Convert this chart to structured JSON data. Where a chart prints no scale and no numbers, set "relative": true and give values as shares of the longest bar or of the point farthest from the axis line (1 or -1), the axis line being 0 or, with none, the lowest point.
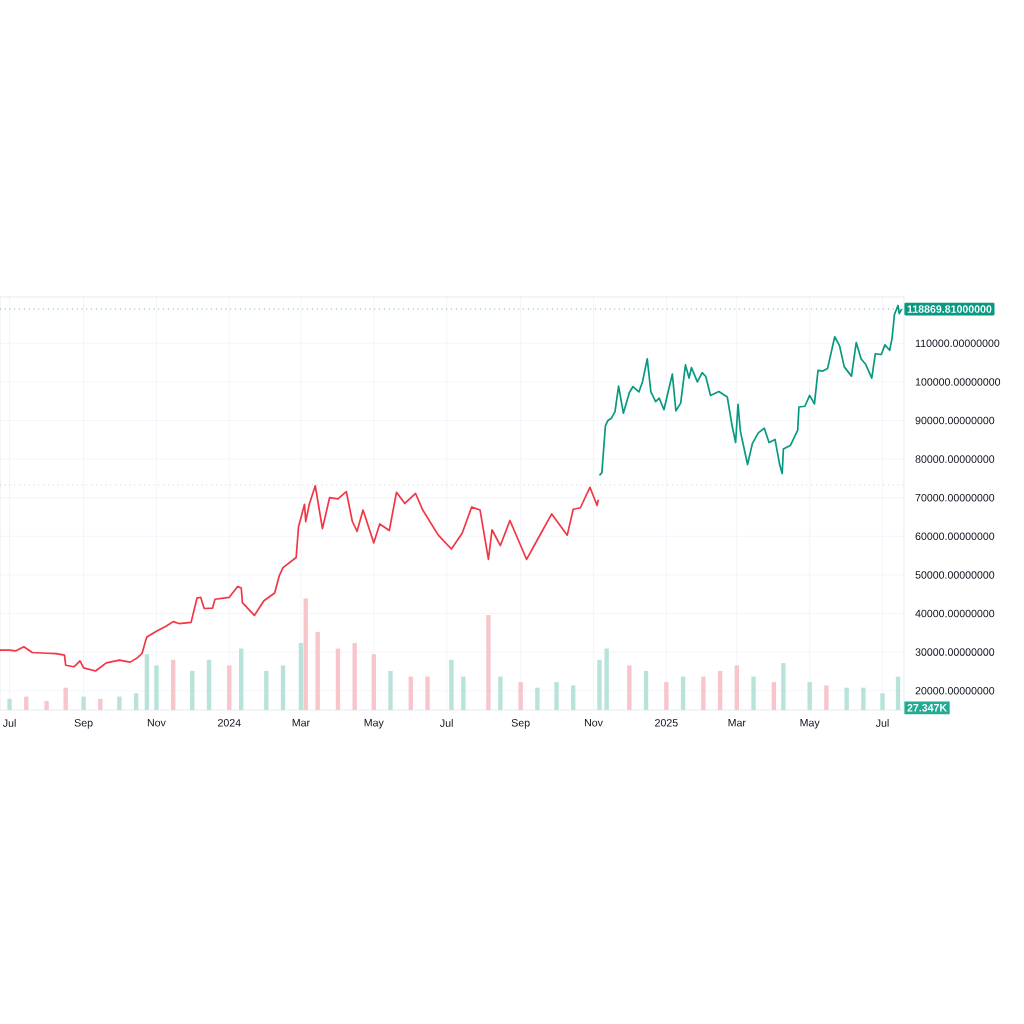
{
  "chart_data": [
    {
      "type": "line",
      "xlim": [
        "2023-06-23",
        "2025-07-19"
      ],
      "ylim": [
        15000,
        122000
      ],
      "grid": true,
      "xticks": [
        {
          "value": "2023-07-01",
          "label": "Jul"
        },
        {
          "value": "2023-09-01",
          "label": "Sep"
        },
        {
          "value": "2023-11-01",
          "label": "Nov"
        },
        {
          "value": "2024-01-01",
          "label": "2024"
        },
        {
          "value": "2024-03-01",
          "label": "Mar"
        },
        {
          "value": "2024-05-01",
          "label": "May"
        },
        {
          "value": "2024-07-01",
          "label": "Jul"
        },
        {
          "value": "2024-09-01",
          "label": "Sep"
        },
        {
          "value": "2024-11-01",
          "label": "Nov"
        },
        {
          "value": "2025-01-01",
          "label": "2025"
        },
        {
          "value": "2025-03-01",
          "label": "Mar"
        },
        {
          "value": "2025-05-01",
          "label": "May"
        },
        {
          "value": "2025-07-01",
          "label": "Jul"
        }
      ],
      "yticks": [
        {
          "value": 20000,
          "label": "20000.00000000"
        },
        {
          "value": 30000,
          "label": "30000.00000000"
        },
        {
          "value": 40000,
          "label": "40000.00000000"
        },
        {
          "value": 50000,
          "label": "50000.00000000"
        },
        {
          "value": 60000,
          "label": "60000.00000000"
        },
        {
          "value": 70000,
          "label": "70000.00000000"
        },
        {
          "value": 80000,
          "label": "80000.00000000"
        },
        {
          "value": 90000,
          "label": "90000.00000000"
        },
        {
          "value": 100000,
          "label": "100000.00000000"
        },
        {
          "value": 110000,
          "label": "110000.00000000"
        }
      ],
      "ref_lines": [
        {
          "axis": "y",
          "value": 73300,
          "color": "#b2b5be",
          "line_style": "dotted"
        },
        {
          "axis": "y",
          "value": 118869.81,
          "label": "118869.81000000",
          "color": "#089981",
          "line_style": "dotted"
        }
      ],
      "series": [
        {
          "color": "#f23645",
          "x": [
            "2023-06-23",
            "2023-07-01",
            "2023-07-06",
            "2023-07-13",
            "2023-07-20",
            "2023-08-01",
            "2023-08-09",
            "2023-08-16",
            "2023-08-17",
            "2023-08-24",
            "2023-08-29",
            "2023-09-01",
            "2023-09-11",
            "2023-09-20",
            "2023-10-01",
            "2023-10-10",
            "2023-10-16",
            "2023-10-20",
            "2023-10-23",
            "2023-10-24",
            "2023-11-01",
            "2023-11-09",
            "2023-11-15",
            "2023-11-20",
            "2023-11-30",
            "2023-12-05",
            "2023-12-08",
            "2023-12-11",
            "2023-12-18",
            "2023-12-20",
            "2024-01-01",
            "2024-01-08",
            "2024-01-11",
            "2024-01-12",
            "2024-01-22",
            "2024-01-30",
            "2024-02-08",
            "2024-02-12",
            "2024-02-15",
            "2024-02-26",
            "2024-02-28",
            "2024-03-04",
            "2024-03-05",
            "2024-03-08",
            "2024-03-13",
            "2024-03-19",
            "2024-03-25",
            "2024-04-01",
            "2024-04-08",
            "2024-04-13",
            "2024-04-17",
            "2024-04-22",
            "2024-05-01",
            "2024-05-06",
            "2024-05-14",
            "2024-05-20",
            "2024-05-27",
            "2024-06-05",
            "2024-06-11",
            "2024-06-24",
            "2024-07-05",
            "2024-07-14",
            "2024-07-22",
            "2024-07-29",
            "2024-08-05",
            "2024-08-08",
            "2024-08-15",
            "2024-08-23",
            "2024-09-06",
            "2024-09-15",
            "2024-09-27",
            "2024-10-10",
            "2024-10-15",
            "2024-10-21",
            "2024-10-29",
            "2024-11-04",
            "2024-11-05"
          ],
          "values": [
            30500,
            30500,
            30300,
            31400,
            29900,
            29700,
            29600,
            29200,
            26600,
            26200,
            27700,
            25900,
            25100,
            27200,
            27900,
            27400,
            28500,
            29700,
            33000,
            33900,
            35400,
            36700,
            37900,
            37400,
            37700,
            44000,
            44200,
            41300,
            41400,
            43700,
            44200,
            47000,
            46600,
            42800,
            39500,
            43300,
            45300,
            49900,
            51900,
            54500,
            62500,
            68300,
            63800,
            68300,
            73100,
            62000,
            70000,
            69700,
            71600,
            63900,
            61300,
            66800,
            58300,
            63200,
            61500,
            71400,
            68500,
            71100,
            66800,
            60300,
            56700,
            60800,
            67600,
            66800,
            54000,
            61700,
            57600,
            64100,
            54000,
            59100,
            65800,
            60300,
            67000,
            67400,
            72700,
            68000,
            69500
          ]
        },
        {
          "color": "#089981",
          "x": [
            "2024-11-06",
            "2024-11-08",
            "2024-11-11",
            "2024-11-13",
            "2024-11-16",
            "2024-11-19",
            "2024-11-22",
            "2024-11-26",
            "2024-12-01",
            "2024-12-04",
            "2024-12-09",
            "2024-12-12",
            "2024-12-16",
            "2024-12-19",
            "2024-12-23",
            "2024-12-26",
            "2024-12-30",
            "2025-01-03",
            "2025-01-06",
            "2025-01-09",
            "2025-01-13",
            "2025-01-17",
            "2025-01-20",
            "2025-01-22",
            "2025-01-27",
            "2025-01-31",
            "2025-02-03",
            "2025-02-07",
            "2025-02-14",
            "2025-02-21",
            "2025-02-25",
            "2025-02-28",
            "2025-03-02",
            "2025-03-04",
            "2025-03-10",
            "2025-03-14",
            "2025-03-19",
            "2025-03-24",
            "2025-03-28",
            "2025-04-02",
            "2025-04-06",
            "2025-04-08",
            "2025-04-09",
            "2025-04-15",
            "2025-04-21",
            "2025-04-22",
            "2025-04-27",
            "2025-05-01",
            "2025-05-05",
            "2025-05-08",
            "2025-05-12",
            "2025-05-16",
            "2025-05-22",
            "2025-05-26",
            "2025-05-30",
            "2025-06-05",
            "2025-06-09",
            "2025-06-13",
            "2025-06-17",
            "2025-06-22",
            "2025-06-25",
            "2025-06-30",
            "2025-07-03",
            "2025-07-07",
            "2025-07-09",
            "2025-07-11",
            "2025-07-14",
            "2025-07-15",
            "2025-07-17"
          ],
          "values": [
            75800,
            76500,
            88700,
            90000,
            90600,
            92300,
            98900,
            91900,
            97200,
            98800,
            97400,
            100000,
            106000,
            97500,
            94900,
            95800,
            92800,
            98100,
            102000,
            92500,
            94500,
            104400,
            101000,
            103700,
            100000,
            102400,
            101400,
            96500,
            97500,
            96100,
            88700,
            84300,
            94200,
            87200,
            78600,
            84000,
            86800,
            88000,
            84300,
            85100,
            78400,
            76300,
            82600,
            83600,
            87500,
            93500,
            93700,
            96500,
            94300,
            103000,
            102800,
            103500,
            111700,
            109400,
            103900,
            101500,
            110200,
            106000,
            104500,
            101000,
            107300,
            107100,
            109600,
            108200,
            111300,
            117500,
            119800,
            117700,
            118869.81
          ]
        }
      ]
    },
    {
      "type": "bar",
      "relative": true,
      "xlim": [
        "2023-06-23",
        "2025-07-19"
      ],
      "annotations": [
        "27.347K"
      ],
      "x": [
        "2023-07-01",
        "2023-07-15",
        "2023-08-01",
        "2023-08-17",
        "2023-09-01",
        "2023-09-15",
        "2023-10-01",
        "2023-10-15",
        "2023-10-24",
        "2023-11-01",
        "2023-11-15",
        "2023-12-01",
        "2023-12-15",
        "2024-01-01",
        "2024-01-11",
        "2024-02-01",
        "2024-02-15",
        "2024-03-01",
        "2024-03-05",
        "2024-03-15",
        "2024-04-01",
        "2024-04-15",
        "2024-05-01",
        "2024-05-15",
        "2024-06-01",
        "2024-06-15",
        "2024-07-05",
        "2024-07-15",
        "2024-08-05",
        "2024-08-15",
        "2024-09-01",
        "2024-09-15",
        "2024-10-01",
        "2024-10-15",
        "2024-11-06",
        "2024-11-12",
        "2024-12-01",
        "2024-12-15",
        "2025-01-01",
        "2025-01-15",
        "2025-02-01",
        "2025-02-15",
        "2025-03-01",
        "2025-03-15",
        "2025-04-01",
        "2025-04-09",
        "2025-05-01",
        "2025-05-15",
        "2025-06-01",
        "2025-06-15",
        "2025-07-01",
        "2025-07-14"
      ],
      "values": [
        0.1,
        0.12,
        0.08,
        0.2,
        0.12,
        0.1,
        0.12,
        0.15,
        0.5,
        0.4,
        0.45,
        0.35,
        0.45,
        0.4,
        0.55,
        0.35,
        0.4,
        0.6,
        1.0,
        0.7,
        0.55,
        0.6,
        0.5,
        0.35,
        0.3,
        0.3,
        0.45,
        0.3,
        0.85,
        0.3,
        0.25,
        0.2,
        0.25,
        0.22,
        0.45,
        0.55,
        0.4,
        0.35,
        0.25,
        0.3,
        0.3,
        0.35,
        0.4,
        0.3,
        0.25,
        0.42,
        0.25,
        0.22,
        0.2,
        0.2,
        0.15,
        0.3
      ],
      "colors": [
        "#b9e3da",
        "#f7c6cb",
        "#f7c6cb",
        "#f7c6cb",
        "#b9e3da",
        "#f7c6cb",
        "#b9e3da",
        "#b9e3da",
        "#b9e3da",
        "#b9e3da",
        "#f7c6cb",
        "#b9e3da",
        "#b9e3da",
        "#f7c6cb",
        "#b9e3da",
        "#b9e3da",
        "#b9e3da",
        "#b9e3da",
        "#f7c6cb",
        "#f7c6cb",
        "#f7c6cb",
        "#f7c6cb",
        "#f7c6cb",
        "#b9e3da",
        "#f7c6cb",
        "#f7c6cb",
        "#b9e3da",
        "#b9e3da",
        "#f7c6cb",
        "#b9e3da",
        "#f7c6cb",
        "#b9e3da",
        "#b9e3da",
        "#b9e3da",
        "#b9e3da",
        "#b9e3da",
        "#f7c6cb",
        "#b9e3da",
        "#f7c6cb",
        "#b9e3da",
        "#f7c6cb",
        "#f7c6cb",
        "#f7c6cb",
        "#b9e3da",
        "#f7c6cb",
        "#b9e3da",
        "#b9e3da",
        "#f7c6cb",
        "#b9e3da",
        "#b9e3da",
        "#b9e3da",
        "#b9e3da"
      ]
    }
  ]
}
